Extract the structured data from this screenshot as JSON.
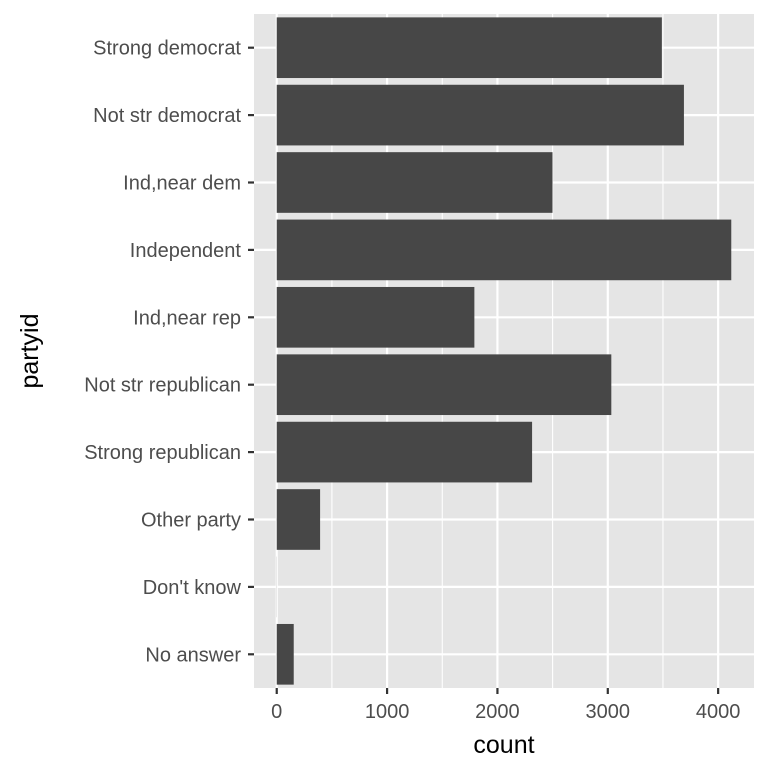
{
  "chart_data": {
    "type": "bar",
    "orientation": "horizontal",
    "categories": [
      "Strong democrat",
      "Not str democrat",
      "Ind,near dem",
      "Independent",
      "Ind,near rep",
      "Not str republican",
      "Strong republican",
      "Other party",
      "Don't know",
      "No answer"
    ],
    "values": [
      3490,
      3690,
      2499,
      4119,
      1791,
      3032,
      2314,
      393,
      1,
      154
    ],
    "xlabel": "count",
    "ylabel": "partyid",
    "xlim": [
      -206,
      4325
    ],
    "xticks": [
      0,
      1000,
      2000,
      3000,
      4000
    ],
    "xtick_labels": [
      "0",
      "1000",
      "2000",
      "3000",
      "4000"
    ],
    "grid": true,
    "colors": {
      "panel": "#e5e5e5",
      "grid_major": "#ffffff",
      "bar": "#474747",
      "tick_text": "#4d4d4d",
      "axis_title": "#000000"
    }
  }
}
